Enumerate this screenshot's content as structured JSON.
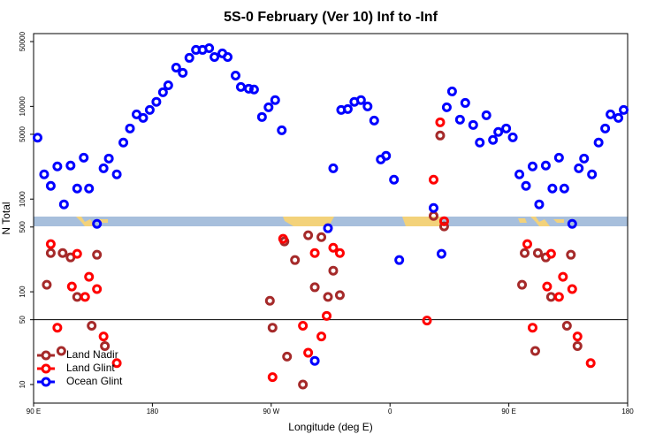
{
  "chart_data": {
    "type": "scatter",
    "title": "5S-0 February (Ver 10)   Inf to -Inf",
    "x_label": "Longitude (deg E)",
    "y_label": "N Total",
    "xlim": [
      90,
      540
    ],
    "xticks": [
      {
        "value": 90,
        "label": "90 E"
      },
      {
        "value": 180,
        "label": "180"
      },
      {
        "value": 270,
        "label": "90 W"
      },
      {
        "value": 360,
        "label": "0"
      },
      {
        "value": 450,
        "label": "90 E"
      },
      {
        "value": 540,
        "label": "180"
      }
    ],
    "ylim": [
      6.3,
      61000
    ],
    "yticks": [
      10,
      50,
      100,
      500,
      1000,
      5000,
      10000,
      50000
    ],
    "log_y": true,
    "reference_line": 50,
    "legend": "lower left",
    "series": [
      {
        "name": "Land Nadir",
        "color": "#a52a2a",
        "x": [
          100,
          103,
          111,
          112,
          118,
          123,
          134,
          138,
          144,
          269,
          271,
          280,
          282,
          288,
          294,
          298,
          303,
          308,
          313,
          317,
          322,
          393,
          398,
          401,
          460,
          462,
          470,
          472,
          478,
          482,
          494,
          497,
          502
        ],
        "values": [
          119,
          262,
          23,
          262,
          235,
          88,
          43,
          251,
          26,
          80,
          41,
          349,
          20,
          220,
          10,
          407,
          112,
          389,
          88,
          169,
          92,
          659,
          4850,
          507,
          119,
          262,
          23,
          262,
          235,
          88,
          43,
          251,
          26
        ]
      },
      {
        "name": "Land Glint",
        "color": "#ff0000",
        "x": [
          103,
          108,
          119,
          123,
          129,
          132,
          138,
          143,
          153,
          271,
          279,
          294,
          298,
          303,
          308,
          312,
          317,
          322,
          388,
          393,
          398,
          401,
          464,
          468,
          479,
          482,
          488,
          491,
          498,
          502,
          512
        ],
        "values": [
          327,
          41,
          114,
          257,
          88,
          145,
          107,
          33,
          17,
          12,
          373,
          43,
          22,
          262,
          33,
          55,
          299,
          262,
          49,
          1620,
          6740,
          578,
          327,
          41,
          114,
          257,
          88,
          145,
          107,
          33,
          17
        ]
      },
      {
        "name": "Ocean Glint",
        "color": "#0000ff",
        "x": [
          93,
          98,
          103,
          108,
          113,
          118,
          123,
          128,
          132,
          138,
          143,
          147,
          153,
          158,
          163,
          168,
          173,
          178,
          183,
          188,
          192,
          198,
          203,
          208,
          213,
          218,
          223,
          227,
          233,
          237,
          243,
          247,
          253,
          257,
          263,
          268,
          273,
          278,
          303,
          313,
          317,
          323,
          328,
          333,
          338,
          343,
          348,
          353,
          357,
          363,
          367,
          393,
          399,
          403,
          407,
          413,
          417,
          423,
          428,
          433,
          438,
          442,
          448,
          453,
          458,
          463,
          468,
          473,
          478,
          483,
          488,
          492,
          498,
          503,
          507,
          513,
          518,
          523,
          527,
          533,
          537
        ],
        "values": [
          4600,
          1850,
          1390,
          2250,
          877,
          2300,
          1300,
          2800,
          1300,
          541,
          2150,
          2740,
          1850,
          4070,
          5780,
          8200,
          7520,
          9160,
          11200,
          14200,
          16900,
          26200,
          23000,
          33400,
          40700,
          40700,
          42500,
          34100,
          37300,
          34100,
          21500,
          16200,
          15500,
          15200,
          7690,
          9780,
          11700,
          5530,
          18,
          485,
          2150,
          9160,
          9360,
          11200,
          11700,
          10000,
          7040,
          2680,
          2930,
          1620,
          220,
          803,
          257,
          9780,
          14500,
          7200,
          10900,
          6310,
          4070,
          8030,
          4350,
          5300,
          5780,
          4640,
          1850,
          1390,
          2250,
          877,
          2300,
          1300,
          2800,
          1300,
          541,
          2150,
          2740,
          1850,
          4070,
          5780,
          8200,
          7520,
          9160
        ]
      }
    ]
  }
}
